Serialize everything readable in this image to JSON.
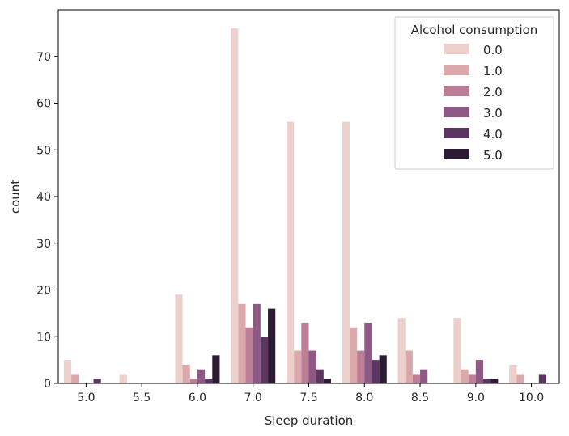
{
  "chart_data": {
    "type": "bar",
    "xlabel": "Sleep duration",
    "ylabel": "count",
    "categories": [
      "5.0",
      "5.5",
      "6.0",
      "7.0",
      "7.5",
      "8.0",
      "8.5",
      "9.0",
      "10.0"
    ],
    "yticks": [
      0,
      10,
      20,
      30,
      40,
      50,
      60,
      70
    ],
    "ylim": [
      0,
      80
    ],
    "legend": {
      "title": "Alcohol consumption",
      "placement": "top-right"
    },
    "series": [
      {
        "name": "0.0",
        "color": "#ebd0cc",
        "values": [
          5,
          2,
          19,
          76,
          56,
          56,
          14,
          14,
          4
        ]
      },
      {
        "name": "1.0",
        "color": "#dba9ac",
        "values": [
          2,
          0,
          4,
          17,
          7,
          12,
          7,
          3,
          2
        ]
      },
      {
        "name": "2.0",
        "color": "#bd7f98",
        "values": [
          0,
          0,
          1,
          12,
          13,
          7,
          2,
          2,
          0
        ]
      },
      {
        "name": "3.0",
        "color": "#8e5a85",
        "values": [
          0,
          0,
          3,
          17,
          7,
          13,
          3,
          5,
          0
        ]
      },
      {
        "name": "4.0",
        "color": "#5a3660",
        "values": [
          1,
          0,
          1,
          10,
          3,
          5,
          0,
          1,
          2
        ]
      },
      {
        "name": "5.0",
        "color": "#2b1b33",
        "values": [
          0,
          0,
          6,
          16,
          1,
          6,
          0,
          1,
          0
        ]
      }
    ]
  }
}
